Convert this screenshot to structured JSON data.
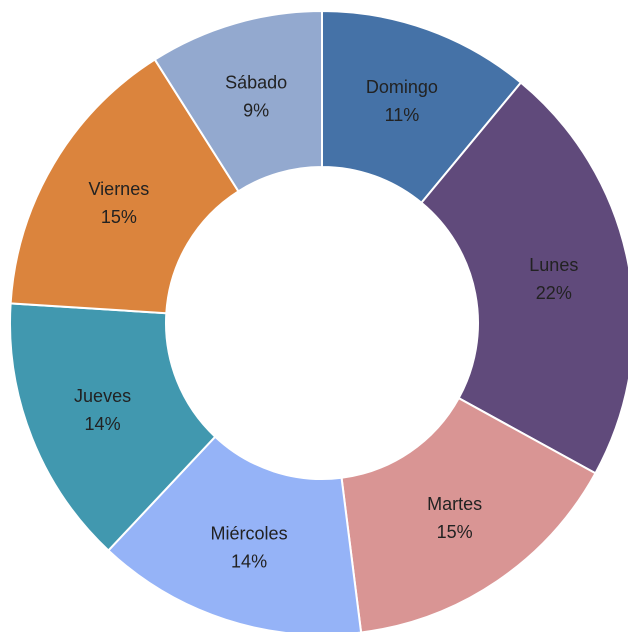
{
  "chart_data": {
    "type": "pie",
    "variant": "donut",
    "title": "",
    "start_angle_deg": 0,
    "direction": "clockwise",
    "categories": [
      "Domingo",
      "Lunes",
      "Martes",
      "Miércoles",
      "Jueves",
      "Viernes",
      "Sábado"
    ],
    "values": [
      11,
      22,
      15,
      14,
      14,
      15,
      9
    ],
    "value_labels": [
      "11%",
      "22%",
      "15%",
      "14%",
      "14%",
      "15%",
      "9%"
    ],
    "colors": [
      "#4572a7",
      "#604a7b",
      "#d99594",
      "#95b3f7",
      "#4198af",
      "#db843d",
      "#93a9cf"
    ],
    "legend": "none",
    "data_labels": "inside"
  }
}
